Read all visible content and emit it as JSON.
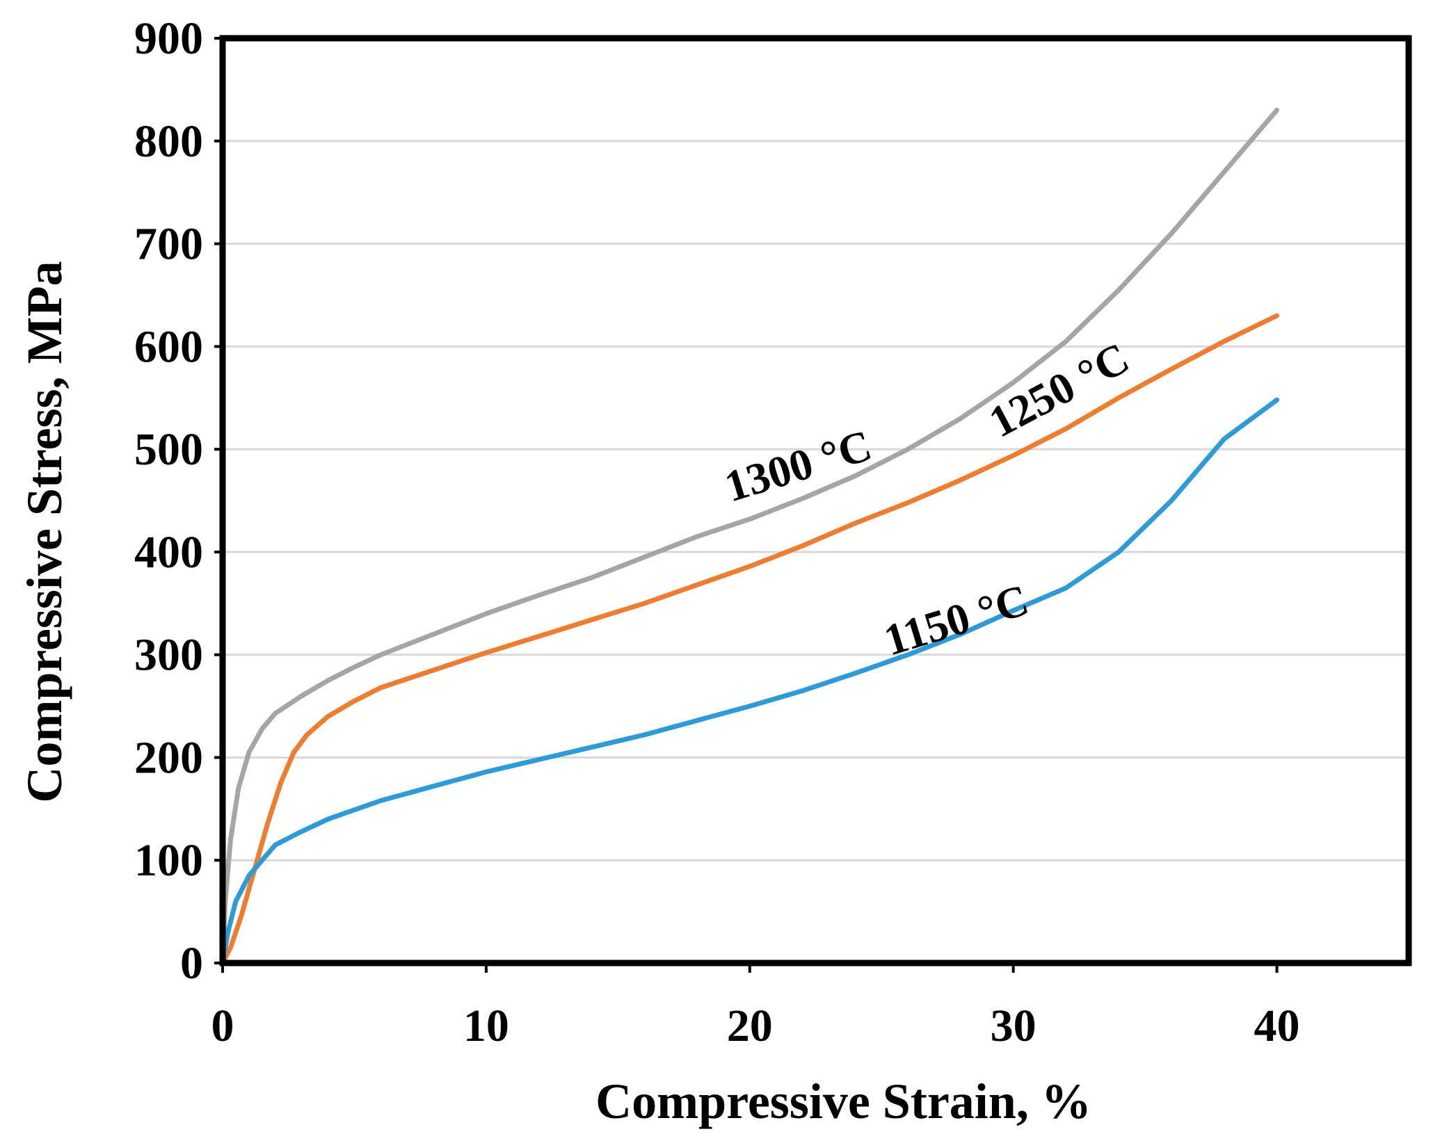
{
  "chart_data": {
    "type": "line",
    "title": "",
    "xlabel": "Compressive Strain, %",
    "ylabel": "Compressive Stress, MPa",
    "xlim": [
      0,
      45
    ],
    "ylim": [
      0,
      900
    ],
    "x_ticks": [
      0,
      10,
      20,
      30,
      40
    ],
    "x_tick_labels": [
      "0",
      "10",
      "20",
      "30",
      "40"
    ],
    "y_ticks": [
      0,
      100,
      200,
      300,
      400,
      500,
      600,
      700,
      800,
      900
    ],
    "y_tick_labels": [
      "0",
      "100",
      "200",
      "300",
      "400",
      "500",
      "600",
      "700",
      "800",
      "900"
    ],
    "grid": "horizontal",
    "legend": "none",
    "series": [
      {
        "name": "1300 °C",
        "color": "#a5a5a5",
        "label_at": [
          22,
          470
        ],
        "label_angle": -17,
        "points": [
          [
            0,
            0
          ],
          [
            0.1,
            60
          ],
          [
            0.3,
            120
          ],
          [
            0.6,
            170
          ],
          [
            1.0,
            205
          ],
          [
            1.5,
            228
          ],
          [
            2.0,
            243
          ],
          [
            3,
            260
          ],
          [
            4,
            275
          ],
          [
            5,
            288
          ],
          [
            6,
            300
          ],
          [
            8,
            320
          ],
          [
            10,
            340
          ],
          [
            12,
            358
          ],
          [
            14,
            375
          ],
          [
            16,
            395
          ],
          [
            18,
            415
          ],
          [
            20,
            432
          ],
          [
            22,
            452
          ],
          [
            24,
            474
          ],
          [
            26,
            500
          ],
          [
            28,
            530
          ],
          [
            30,
            565
          ],
          [
            32,
            605
          ],
          [
            34,
            655
          ],
          [
            36,
            710
          ],
          [
            38,
            770
          ],
          [
            40,
            830
          ]
        ]
      },
      {
        "name": "1250 °C",
        "color": "#ed7d31",
        "label_at": [
          32,
          545
        ],
        "label_angle": -28,
        "points": [
          [
            0,
            0
          ],
          [
            0.3,
            15
          ],
          [
            0.7,
            45
          ],
          [
            1.2,
            90
          ],
          [
            1.7,
            135
          ],
          [
            2.2,
            175
          ],
          [
            2.7,
            205
          ],
          [
            3.2,
            222
          ],
          [
            4,
            240
          ],
          [
            5,
            255
          ],
          [
            6,
            268
          ],
          [
            8,
            285
          ],
          [
            10,
            302
          ],
          [
            12,
            318
          ],
          [
            14,
            334
          ],
          [
            16,
            350
          ],
          [
            18,
            368
          ],
          [
            20,
            386
          ],
          [
            22,
            406
          ],
          [
            24,
            428
          ],
          [
            26,
            448
          ],
          [
            28,
            470
          ],
          [
            30,
            494
          ],
          [
            32,
            520
          ],
          [
            34,
            550
          ],
          [
            36,
            578
          ],
          [
            38,
            605
          ],
          [
            40,
            630
          ]
        ]
      },
      {
        "name": "1150 °C",
        "color": "#2e9bd6",
        "label_at": [
          28,
          320
        ],
        "label_angle": -17,
        "points": [
          [
            0,
            0
          ],
          [
            0.2,
            30
          ],
          [
            0.5,
            60
          ],
          [
            1.0,
            85
          ],
          [
            1.5,
            100
          ],
          [
            2,
            115
          ],
          [
            3,
            128
          ],
          [
            4,
            140
          ],
          [
            6,
            158
          ],
          [
            8,
            172
          ],
          [
            10,
            186
          ],
          [
            12,
            198
          ],
          [
            14,
            210
          ],
          [
            16,
            222
          ],
          [
            18,
            236
          ],
          [
            20,
            250
          ],
          [
            22,
            265
          ],
          [
            24,
            282
          ],
          [
            26,
            300
          ],
          [
            28,
            320
          ],
          [
            30,
            343
          ],
          [
            32,
            365
          ],
          [
            34,
            400
          ],
          [
            36,
            450
          ],
          [
            38,
            510
          ],
          [
            40,
            548
          ]
        ]
      }
    ]
  }
}
